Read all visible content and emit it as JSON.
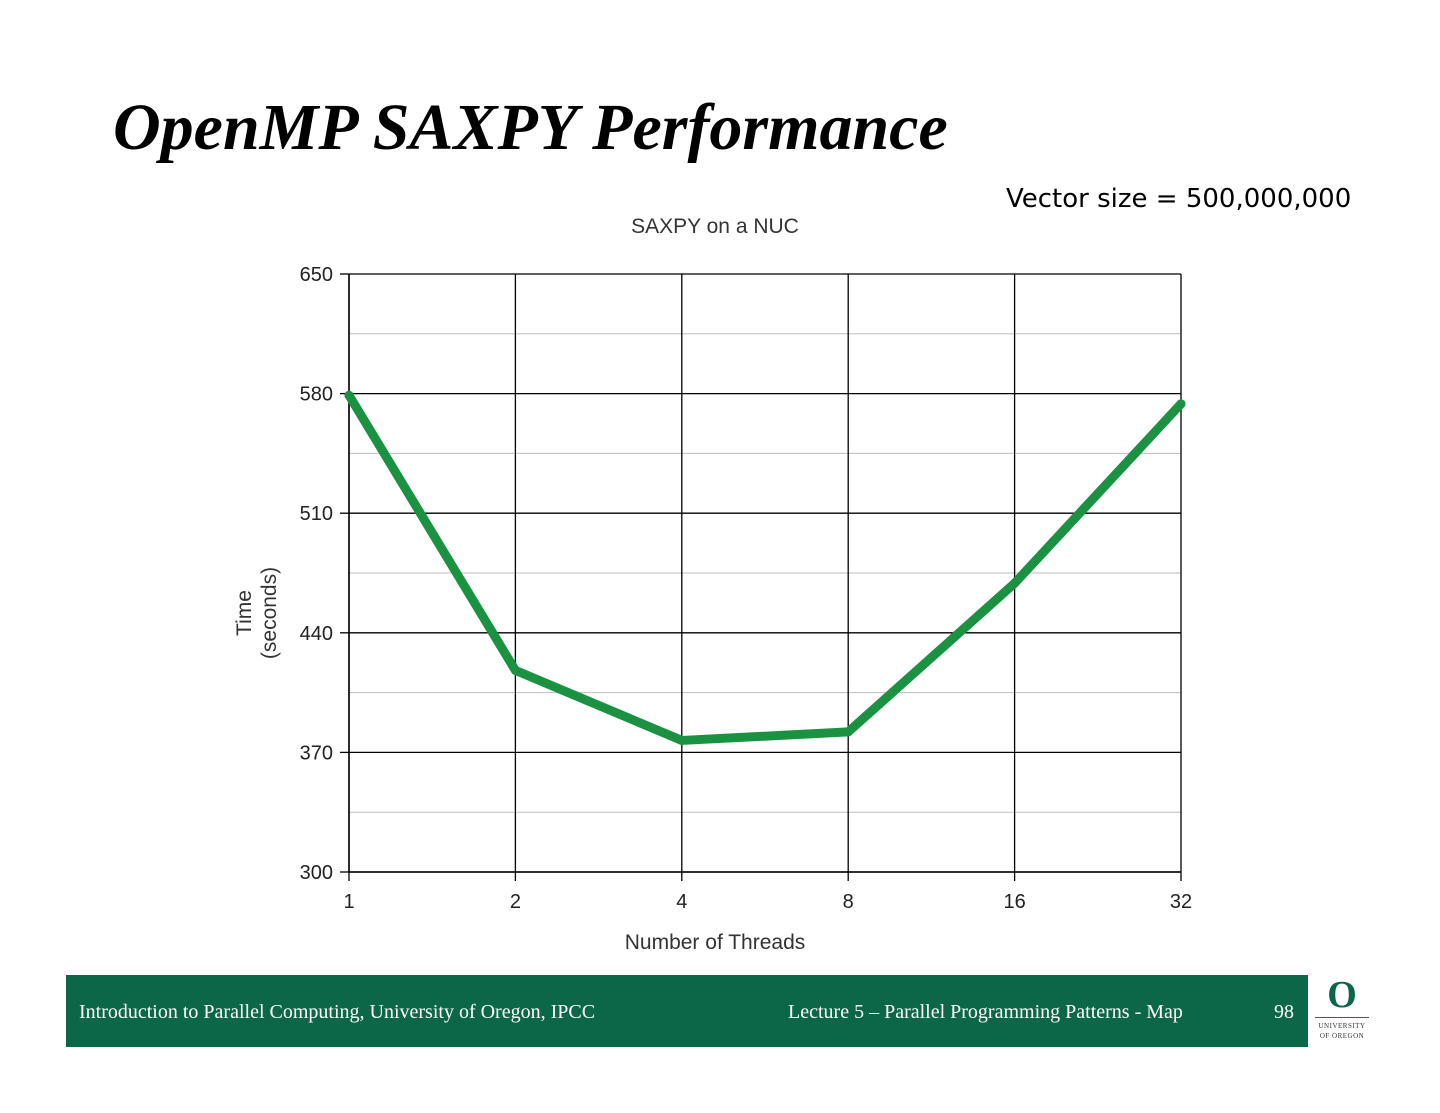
{
  "slide": {
    "title": "OpenMP SAXPY Performance",
    "annotation": "Vector size = 500,000,000"
  },
  "footer": {
    "left_text": "Introduction to Parallel Computing, University of Oregon, IPCC",
    "right_text": "Lecture 5 – Parallel Programming Patterns - Map",
    "page_number": "98",
    "background_color": "#0b6747"
  },
  "logo": {
    "letter": "O",
    "line1": "UNIVERSITY",
    "line2": "OF OREGON",
    "color": "#0b6747"
  },
  "chart_data": {
    "type": "line",
    "title": "SAXPY on a NUC",
    "xlabel": "Number of Threads",
    "ylabel_lines": [
      "Time",
      "(seconds)"
    ],
    "categories": [
      "1",
      "2",
      "4",
      "8",
      "16",
      "32"
    ],
    "series": [
      {
        "values": [
          579,
          418,
          377,
          382,
          469,
          574
        ],
        "color": "#1a9241"
      }
    ],
    "ylim": [
      300,
      650
    ],
    "yticks": [
      300,
      370,
      440,
      510,
      580,
      650
    ],
    "minor_gridlines": [
      335,
      405,
      475,
      545,
      615
    ],
    "grid": true,
    "x_scale": "categorical (log2 spacing)"
  }
}
